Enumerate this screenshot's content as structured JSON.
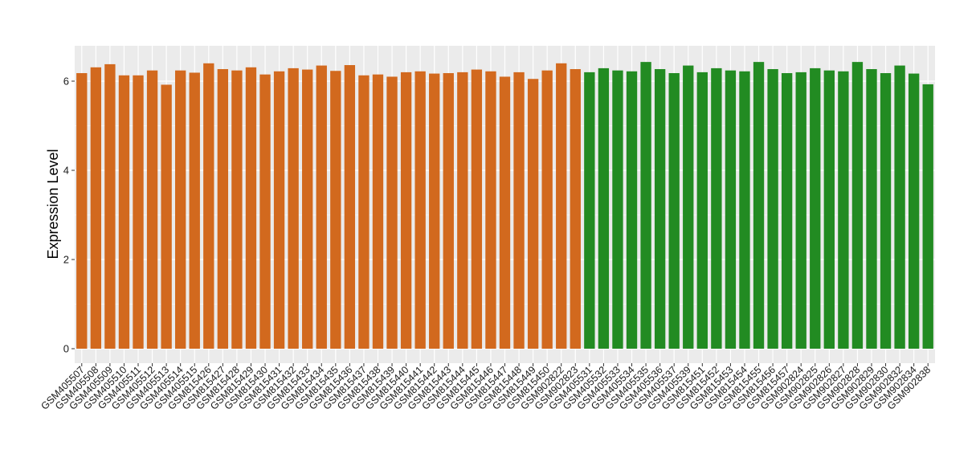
{
  "chart_data": {
    "type": "bar",
    "ylabel": "Expression Level",
    "xlabel": "",
    "ylim": [
      0,
      6.75
    ],
    "yticks": [
      0,
      2,
      4,
      6
    ],
    "grid": true,
    "colors": {
      "group_1": "#d2691e",
      "group_2": "#228b22",
      "panel_bg": "#ebebeb",
      "grid": "#ffffff"
    },
    "categories": [
      "GSM405507",
      "GSM405508",
      "GSM405509",
      "GSM405510",
      "GSM405511",
      "GSM405512",
      "GSM405513",
      "GSM405514",
      "GSM405515",
      "GSM815426",
      "GSM815427",
      "GSM815428",
      "GSM815429",
      "GSM815430",
      "GSM815431",
      "GSM815432",
      "GSM815433",
      "GSM815434",
      "GSM815435",
      "GSM815436",
      "GSM815437",
      "GSM815438",
      "GSM815439",
      "GSM815440",
      "GSM815441",
      "GSM815442",
      "GSM815443",
      "GSM815444",
      "GSM815445",
      "GSM815446",
      "GSM815447",
      "GSM815448",
      "GSM815449",
      "GSM815450",
      "GSM902822",
      "GSM902823",
      "GSM405531",
      "GSM405532",
      "GSM405533",
      "GSM405534",
      "GSM405535",
      "GSM405536",
      "GSM405537",
      "GSM405539",
      "GSM815451",
      "GSM815452",
      "GSM815453",
      "GSM815454",
      "GSM815455",
      "GSM815456",
      "GSM815457",
      "GSM902824",
      "GSM902825",
      "GSM902826",
      "GSM902827",
      "GSM902828",
      "GSM902829",
      "GSM902830",
      "GSM902832",
      "GSM902834",
      "GSM902838"
    ],
    "values": [
      6.18,
      6.31,
      6.38,
      6.13,
      6.13,
      6.24,
      5.92,
      6.24,
      6.19,
      6.4,
      6.27,
      6.24,
      6.31,
      6.15,
      6.22,
      6.29,
      6.26,
      6.35,
      6.23,
      6.36,
      6.13,
      6.15,
      6.1,
      6.2,
      6.22,
      6.17,
      6.18,
      6.2,
      6.26,
      6.22,
      6.1,
      6.2,
      6.05,
      6.24,
      6.4,
      6.27,
      6.2,
      6.29,
      6.24,
      6.22,
      6.43,
      6.27,
      6.18,
      6.35,
      6.2,
      6.29,
      6.24,
      6.22,
      6.43,
      6.27,
      6.18,
      6.2,
      6.29,
      6.24,
      6.22,
      6.43,
      6.27,
      6.18,
      6.35,
      6.17,
      5.93
    ],
    "group_of_bar": [
      1,
      1,
      1,
      1,
      1,
      1,
      1,
      1,
      1,
      1,
      1,
      1,
      1,
      1,
      1,
      1,
      1,
      1,
      1,
      1,
      1,
      1,
      1,
      1,
      1,
      1,
      1,
      1,
      1,
      1,
      1,
      1,
      1,
      1,
      1,
      1,
      2,
      2,
      2,
      2,
      2,
      2,
      2,
      2,
      2,
      2,
      2,
      2,
      2,
      2,
      2,
      2,
      2,
      2,
      2,
      2,
      2,
      2,
      2,
      2,
      2
    ]
  }
}
